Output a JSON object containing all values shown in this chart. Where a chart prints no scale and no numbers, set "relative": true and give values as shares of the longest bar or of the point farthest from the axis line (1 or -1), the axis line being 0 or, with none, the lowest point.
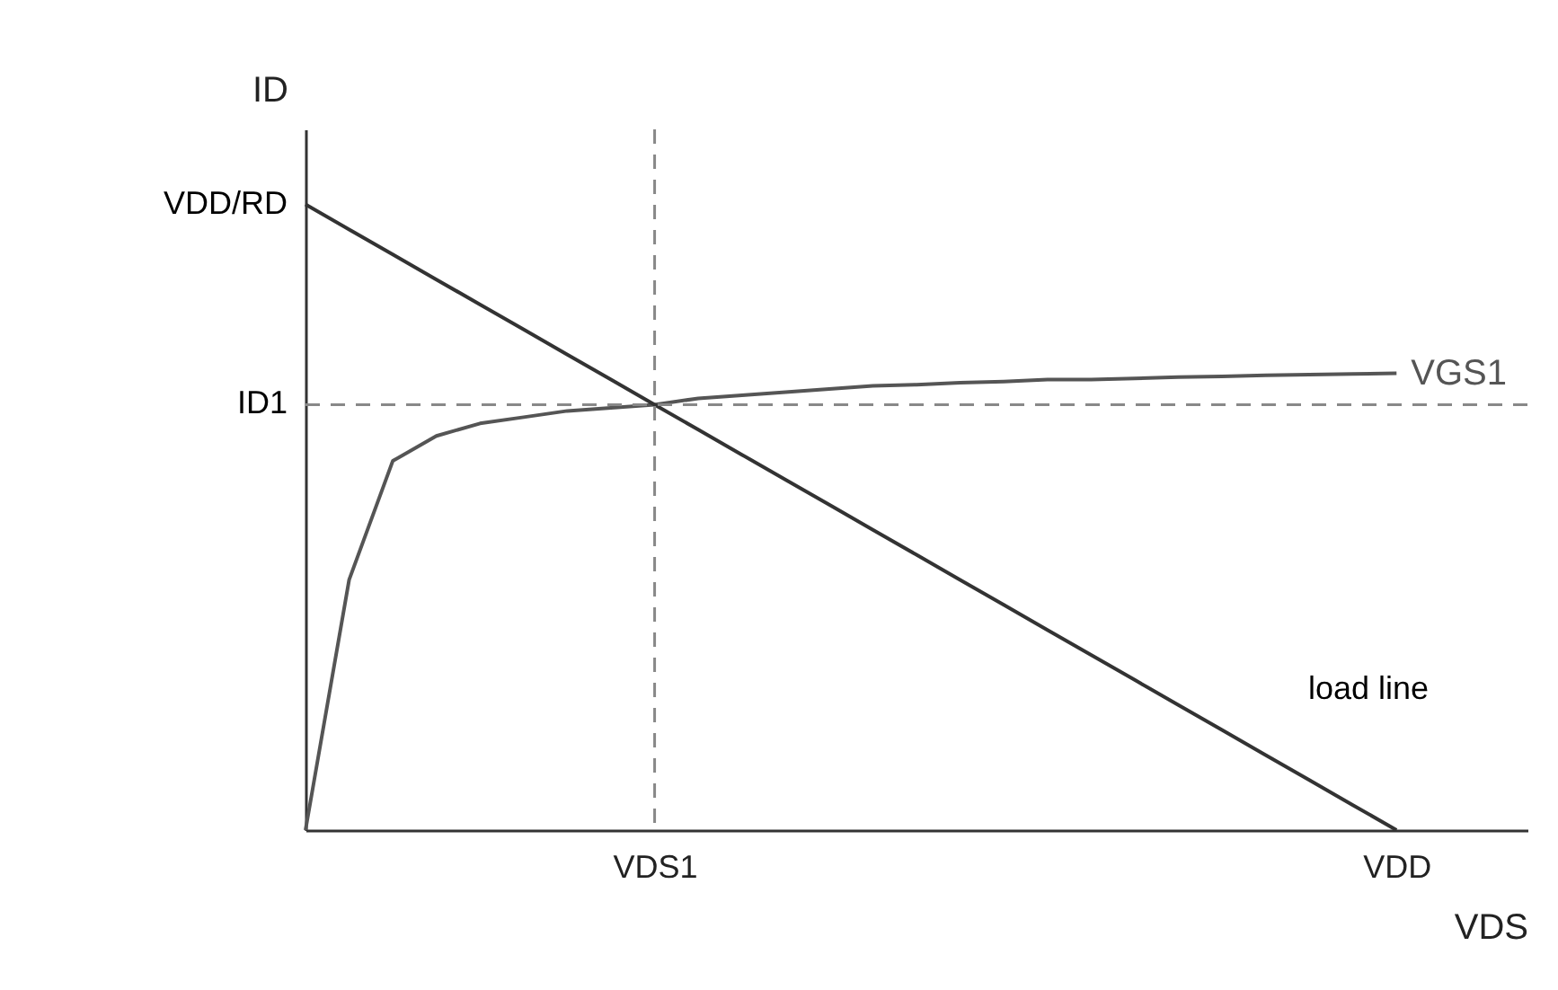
{
  "chart_data": {
    "type": "line",
    "xlabel": "VDS",
    "ylabel": "ID",
    "relative": true,
    "line_style": "solid",
    "categories": [
      null,
      null,
      null,
      null,
      null,
      null,
      null,
      null,
      "VDS1",
      null,
      null,
      null,
      null,
      null,
      null,
      null,
      null,
      null,
      null,
      null,
      null,
      null,
      null,
      null,
      null,
      "VDD",
      null,
      null,
      null
    ],
    "series": [
      {
        "name": "VGS1",
        "color": "#555555",
        "values": [
          0,
          0.4,
          0.59,
          0.63,
          0.65,
          0.66,
          0.67,
          0.675,
          0.68,
          0.69,
          0.695,
          0.7,
          0.705,
          0.71,
          0.712,
          0.715,
          0.717,
          0.72,
          0.72,
          0.722,
          0.724,
          0.725,
          0.727,
          0.728,
          0.729,
          0.73,
          null,
          null,
          null
        ]
      },
      {
        "color": "#333333",
        "values": [
          1,
          0.96,
          0.92,
          0.88,
          0.84,
          0.8,
          0.76,
          0.72,
          0.68,
          0.64,
          0.6,
          0.56,
          0.52,
          0.48,
          0.44,
          0.4,
          0.36,
          0.32,
          0.28,
          0.24,
          0.2,
          0.16,
          0.12,
          0.08,
          0.04,
          0,
          null,
          null,
          null
        ]
      }
    ],
    "ref_lines": [
      {
        "axis": "x",
        "value": "VDS1",
        "color": "#888888",
        "line_style": "dashed"
      },
      {
        "axis": "y",
        "value": 0.68,
        "label": "ID1",
        "color": "#888888",
        "line_style": "dashed"
      }
    ],
    "annotations": [
      "VDD/RD",
      "load line"
    ]
  }
}
